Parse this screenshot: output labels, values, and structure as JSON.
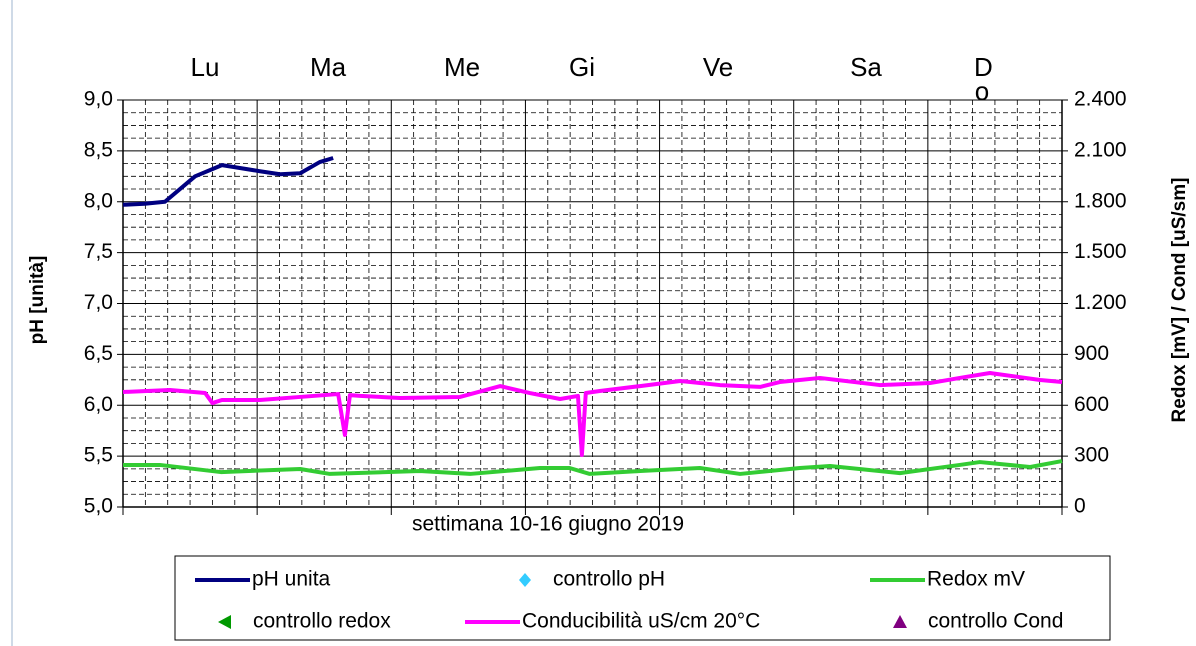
{
  "chart_data": {
    "type": "line",
    "days": [
      "Lu",
      "Ma",
      "Me",
      "Gi",
      "Ve",
      "Sa",
      "Do"
    ],
    "xlabel": "settimana 10-16 giugno 2019",
    "ylabel": "pH [unità]",
    "y2label": "Redox [mV] / Cond [uS/sm]",
    "xlim": [
      0,
      168
    ],
    "xticks": [
      0,
      24,
      48,
      72,
      96,
      120,
      144,
      168
    ],
    "ylim": [
      5,
      9
    ],
    "yticks": [
      {
        "value": 5,
        "label": "5,0"
      },
      {
        "value": 5.5,
        "label": "5,5"
      },
      {
        "value": 6,
        "label": "6,0"
      },
      {
        "value": 6.5,
        "label": "6,5"
      },
      {
        "value": 7,
        "label": "7,0"
      },
      {
        "value": 7.5,
        "label": "7,5"
      },
      {
        "value": 8,
        "label": "8,0"
      },
      {
        "value": 8.5,
        "label": "8,5"
      },
      {
        "value": 9,
        "label": "9,0"
      }
    ],
    "y2lim": [
      0,
      2400
    ],
    "y2ticks": [
      0,
      300,
      600,
      900,
      {
        "value": 1200,
        "label": "1.200"
      },
      {
        "value": 1500,
        "label": "1.500"
      },
      {
        "value": 1800,
        "label": "1.800"
      },
      {
        "value": 2100,
        "label": "2.100"
      },
      {
        "value": 2400,
        "label": "2.400"
      }
    ],
    "grid": true,
    "series": [
      {
        "name": "pH unita",
        "color": "#000080",
        "marker": "line",
        "axis": "y",
        "x": [
          0,
          3.9,
          7.5,
          12.9,
          17.7,
          24.5,
          28.1,
          31.7,
          35.2,
          37.6
        ],
        "values": [
          7.97,
          7.98,
          8.0,
          8.25,
          8.36,
          8.3,
          8.27,
          8.28,
          8.39,
          8.43
        ]
      },
      {
        "name": "controllo pH",
        "color": "#33ccff",
        "marker": "diamond",
        "axis": "y",
        "x": [],
        "values": []
      },
      {
        "name": "Redox mV",
        "color": "#33cc33",
        "marker": "line",
        "axis": "y2",
        "x": [
          0,
          6.6,
          17.5,
          31.7,
          37.0,
          53.1,
          62.1,
          74.6,
          79.9,
          83.5,
          92.5,
          103.2,
          110.4,
          121.1,
          126.5,
          139.0,
          149.7,
          153.3,
          162.3,
          168
        ],
        "values": [
          248,
          248,
          206,
          224,
          195,
          212,
          195,
          230,
          230,
          195,
          212,
          230,
          195,
          230,
          242,
          200,
          248,
          265,
          236,
          271
        ]
      },
      {
        "name": "controllo redox",
        "color": "#009900",
        "marker": "triangle-left",
        "axis": "y2",
        "x": [],
        "values": []
      },
      {
        "name": "Conducibilità uS/cm 20°C",
        "color": "#ff00ff",
        "marker": "line",
        "axis": "y2",
        "x": [
          0,
          8.4,
          14.7,
          16.0,
          17.7,
          24.5,
          31.7,
          38.5,
          39.7,
          40.6,
          42.4,
          49.6,
          60.3,
          67.5,
          72.8,
          78.2,
          81.4,
          82.1,
          82.8,
          85.3,
          92.5,
          99.7,
          106.8,
          114.0,
          117.5,
          124.7,
          135.4,
          144.4,
          149.7,
          155.1,
          164.1,
          168
        ],
        "values": [
          678,
          690,
          672,
          613,
          631,
          631,
          649,
          666,
          425,
          660,
          655,
          643,
          649,
          713,
          672,
          637,
          655,
          307,
          672,
          684,
          713,
          743,
          719,
          708,
          737,
          761,
          719,
          731,
          761,
          790,
          749,
          737
        ]
      },
      {
        "name": "controllo Cond",
        "color": "#800080",
        "marker": "triangle-up",
        "axis": "y2",
        "x": [],
        "values": []
      }
    ]
  }
}
